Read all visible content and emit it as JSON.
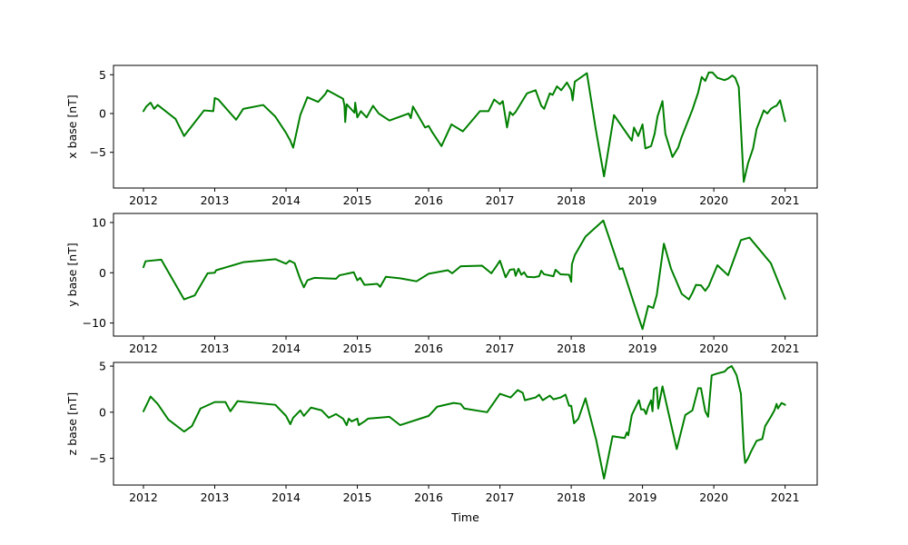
{
  "chart_data": [
    {
      "type": "line",
      "title": "",
      "xlabel": "",
      "ylabel": "x base [nT]",
      "xlim": [
        2011.58,
        2021.45
      ],
      "ylim": [
        -9.6,
        6.2
      ],
      "yticks": [
        -5,
        0,
        5
      ],
      "ytick_labels": [
        "−5",
        "0",
        "5"
      ],
      "xticks": [
        2012,
        2013,
        2014,
        2015,
        2016,
        2017,
        2018,
        2019,
        2020,
        2021
      ],
      "xtick_labels": [
        "2012",
        "2013",
        "2014",
        "2015",
        "2016",
        "2017",
        "2018",
        "2019",
        "2020",
        "2021"
      ],
      "grid": false,
      "color": "#008000",
      "series": [
        {
          "x": [
            2012.0,
            2012.04,
            2012.1,
            2012.15,
            2012.2,
            2012.45,
            2012.57,
            2012.85,
            2012.98,
            2013.0,
            2013.05,
            2013.3,
            2013.4,
            2013.68,
            2013.85,
            2014.0,
            2014.06,
            2014.1,
            2014.2,
            2014.3,
            2014.45,
            2014.5,
            2014.55,
            2014.58,
            2014.8,
            2014.82,
            2014.83,
            2014.85,
            2014.96,
            2014.97,
            2015.0,
            2015.05,
            2015.13,
            2015.22,
            2015.3,
            2015.45,
            2015.72,
            2015.75,
            2015.78,
            2015.95,
            2016.0,
            2016.05,
            2016.18,
            2016.32,
            2016.48,
            2016.72,
            2016.84,
            2016.92,
            2017.0,
            2017.04,
            2017.1,
            2017.14,
            2017.18,
            2017.22,
            2017.38,
            2017.5,
            2017.58,
            2017.62,
            2017.7,
            2017.74,
            2017.8,
            2017.86,
            2017.94,
            2018.0,
            2018.02,
            2018.05,
            2018.22,
            2018.34,
            2018.46,
            2018.6,
            2018.85,
            2018.88,
            2018.94,
            2019.0,
            2019.04,
            2019.12,
            2019.17,
            2019.21,
            2019.28,
            2019.32,
            2019.42,
            2019.5,
            2019.55,
            2019.7,
            2019.78,
            2019.83,
            2019.88,
            2019.93,
            2019.98,
            2020.05,
            2020.15,
            2020.2,
            2020.26,
            2020.3,
            2020.35,
            2020.42,
            2020.48,
            2020.55,
            2020.6,
            2020.7,
            2020.75,
            2020.8,
            2020.85,
            2020.88,
            2020.93,
            2021.0
          ],
          "values": [
            0.3,
            0.9,
            1.4,
            0.6,
            1.1,
            -0.7,
            -2.9,
            0.4,
            0.3,
            2.0,
            1.8,
            -0.8,
            0.6,
            1.1,
            -0.4,
            -2.5,
            -3.5,
            -4.4,
            -0.2,
            2.1,
            1.5,
            2.0,
            2.5,
            3.0,
            1.9,
            1.0,
            -1.1,
            1.2,
            0.1,
            1.4,
            -0.5,
            0.3,
            -0.5,
            1.0,
            0.0,
            -0.9,
            0.0,
            -0.6,
            0.9,
            -1.8,
            -1.6,
            -2.4,
            -4.2,
            -1.4,
            -2.3,
            0.3,
            0.3,
            1.8,
            1.2,
            1.6,
            -1.8,
            0.2,
            -0.2,
            0.2,
            2.6,
            3.0,
            1.0,
            0.6,
            2.6,
            2.4,
            3.5,
            3.0,
            4.0,
            3.0,
            1.7,
            4.1,
            5.2,
            -1.8,
            -8.1,
            -0.2,
            -3.5,
            -1.8,
            -2.9,
            -1.4,
            -4.5,
            -4.2,
            -2.6,
            -0.4,
            1.6,
            -2.6,
            -5.6,
            -4.4,
            -3.0,
            0.5,
            2.7,
            4.7,
            4.2,
            5.3,
            5.3,
            4.6,
            4.3,
            4.5,
            4.9,
            4.6,
            3.4,
            -8.8,
            -6.4,
            -4.5,
            -2.0,
            0.4,
            0.0,
            0.6,
            0.9,
            1.0,
            1.7,
            -1.0
          ]
        }
      ]
    },
    {
      "type": "line",
      "title": "",
      "xlabel": "",
      "ylabel": "y base [nT]",
      "xlim": [
        2011.58,
        2021.45
      ],
      "ylim": [
        -12.6,
        11.8
      ],
      "yticks": [
        -10,
        0,
        10
      ],
      "ytick_labels": [
        "−10",
        "0",
        "10"
      ],
      "xticks": [
        2012,
        2013,
        2014,
        2015,
        2016,
        2017,
        2018,
        2019,
        2020,
        2021
      ],
      "xtick_labels": [
        "2012",
        "2013",
        "2014",
        "2015",
        "2016",
        "2017",
        "2018",
        "2019",
        "2020",
        "2021"
      ],
      "grid": false,
      "color": "#008000",
      "series": [
        {
          "x": [
            2012.0,
            2012.03,
            2012.25,
            2012.57,
            2012.72,
            2012.9,
            2013.0,
            2013.02,
            2013.4,
            2013.85,
            2014.0,
            2014.05,
            2014.12,
            2014.2,
            2014.25,
            2014.3,
            2014.4,
            2014.7,
            2014.75,
            2014.95,
            2015.0,
            2015.04,
            2015.1,
            2015.28,
            2015.32,
            2015.4,
            2015.6,
            2015.83,
            2016.0,
            2016.27,
            2016.33,
            2016.45,
            2016.75,
            2016.88,
            2016.95,
            2017.0,
            2017.08,
            2017.14,
            2017.2,
            2017.22,
            2017.26,
            2017.3,
            2017.34,
            2017.38,
            2017.48,
            2017.55,
            2017.58,
            2017.62,
            2017.75,
            2017.78,
            2017.85,
            2017.97,
            2018.0,
            2018.01,
            2018.05,
            2018.2,
            2018.45,
            2018.68,
            2018.72,
            2018.88,
            2018.95,
            2019.0,
            2019.08,
            2019.15,
            2019.2,
            2019.3,
            2019.4,
            2019.55,
            2019.65,
            2019.7,
            2019.75,
            2019.82,
            2019.88,
            2019.93,
            2020.05,
            2020.2,
            2020.3,
            2020.38,
            2020.5,
            2020.8,
            2021.0
          ],
          "values": [
            1.1,
            2.3,
            2.6,
            -5.3,
            -4.5,
            -0.1,
            0.0,
            0.5,
            2.1,
            2.7,
            1.8,
            2.4,
            1.9,
            -1.3,
            -2.9,
            -1.5,
            -1.0,
            -1.2,
            -0.5,
            0.1,
            -1.5,
            -1.0,
            -2.4,
            -2.2,
            -2.8,
            -0.8,
            -1.1,
            -1.7,
            -0.2,
            0.5,
            -0.1,
            1.3,
            1.4,
            -0.1,
            1.3,
            2.4,
            -0.9,
            0.6,
            0.7,
            -0.6,
            0.8,
            -0.4,
            0.1,
            -0.8,
            -0.9,
            -0.7,
            0.4,
            -0.3,
            -0.7,
            0.6,
            -0.3,
            -0.4,
            -1.8,
            1.7,
            3.5,
            7.2,
            10.4,
            0.7,
            0.9,
            -6.1,
            -9.1,
            -11.2,
            -6.6,
            -7.0,
            -4.4,
            5.8,
            0.8,
            -4.2,
            -5.3,
            -4.0,
            -2.4,
            -2.5,
            -3.6,
            -2.6,
            1.5,
            -0.5,
            3.4,
            6.5,
            7.0,
            1.9,
            -5.2
          ]
        }
      ]
    },
    {
      "type": "line",
      "title": "",
      "xlabel": "Time",
      "ylabel": "z base [nT]",
      "xlim": [
        2011.58,
        2021.45
      ],
      "ylim": [
        -7.9,
        5.4
      ],
      "yticks": [
        -5,
        0,
        5
      ],
      "ytick_labels": [
        "−5",
        "0",
        "5"
      ],
      "xticks": [
        2012,
        2013,
        2014,
        2015,
        2016,
        2017,
        2018,
        2019,
        2020,
        2021
      ],
      "xtick_labels": [
        "2012",
        "2013",
        "2014",
        "2015",
        "2016",
        "2017",
        "2018",
        "2019",
        "2020",
        "2021"
      ],
      "grid": false,
      "color": "#008000",
      "series": [
        {
          "x": [
            2012.0,
            2012.1,
            2012.2,
            2012.35,
            2012.57,
            2012.68,
            2012.8,
            2013.0,
            2013.15,
            2013.22,
            2013.32,
            2013.85,
            2014.0,
            2014.06,
            2014.1,
            2014.2,
            2014.25,
            2014.35,
            2014.5,
            2014.6,
            2014.7,
            2014.8,
            2014.85,
            2014.88,
            2014.92,
            2015.0,
            2015.02,
            2015.1,
            2015.15,
            2015.45,
            2015.6,
            2016.0,
            2016.05,
            2016.12,
            2016.35,
            2016.45,
            2016.5,
            2016.82,
            2017.0,
            2017.15,
            2017.25,
            2017.32,
            2017.35,
            2017.5,
            2017.55,
            2017.6,
            2017.7,
            2017.75,
            2017.85,
            2017.92,
            2017.97,
            2018.0,
            2018.04,
            2018.1,
            2018.2,
            2018.35,
            2018.46,
            2018.58,
            2018.75,
            2018.78,
            2018.8,
            2018.85,
            2018.95,
            2018.98,
            2019.02,
            2019.05,
            2019.08,
            2019.12,
            2019.14,
            2019.16,
            2019.2,
            2019.22,
            2019.28,
            2019.4,
            2019.48,
            2019.6,
            2019.7,
            2019.78,
            2019.82,
            2019.88,
            2019.92,
            2019.97,
            2020.05,
            2020.15,
            2020.2,
            2020.25,
            2020.28,
            2020.32,
            2020.38,
            2020.42,
            2020.44,
            2020.48,
            2020.52,
            2020.6,
            2020.68,
            2020.72,
            2020.8,
            2020.85,
            2020.88,
            2020.9,
            2020.95,
            2021.0
          ],
          "values": [
            0.1,
            1.7,
            0.9,
            -0.8,
            -2.1,
            -1.5,
            0.4,
            1.1,
            1.1,
            0.1,
            1.2,
            0.8,
            -0.4,
            -1.3,
            -0.6,
            0.2,
            -0.4,
            0.5,
            0.2,
            -0.6,
            -0.2,
            -0.7,
            -1.4,
            -0.7,
            -1.0,
            -0.7,
            -1.4,
            -1.0,
            -0.7,
            -0.5,
            -1.4,
            -0.4,
            0.0,
            0.6,
            1.0,
            0.9,
            0.4,
            0.0,
            2.0,
            1.6,
            2.4,
            2.1,
            1.3,
            1.6,
            1.9,
            1.3,
            1.8,
            1.4,
            1.6,
            1.9,
            0.7,
            0.7,
            -1.2,
            -0.7,
            1.5,
            -3.0,
            -7.2,
            -2.6,
            -2.8,
            -2.2,
            -2.5,
            -0.3,
            1.3,
            0.3,
            0.3,
            -0.2,
            0.6,
            1.3,
            0.1,
            2.5,
            2.7,
            0.4,
            2.8,
            -1.3,
            -4.0,
            -0.3,
            0.2,
            2.6,
            2.6,
            0.1,
            -0.5,
            4.0,
            4.2,
            4.4,
            4.8,
            5.0,
            4.6,
            4.0,
            2.0,
            -4.0,
            -5.5,
            -5.0,
            -4.3,
            -3.1,
            -2.9,
            -1.5,
            -0.5,
            0.2,
            0.9,
            0.4,
            1.0,
            0.8
          ]
        }
      ]
    }
  ]
}
